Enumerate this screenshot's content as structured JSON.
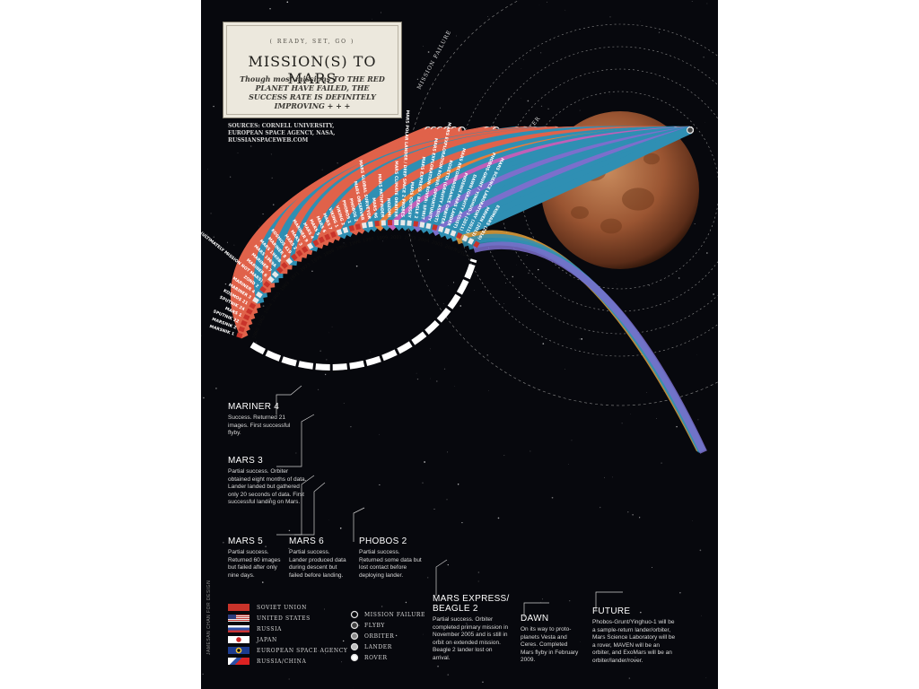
{
  "header": {
    "eyebrow": "( READY, SET, GO )",
    "title": "MISSION(S) TO MARS",
    "subtitle": "Though most missions TO THE RED PLANET HAVE FAILED, THE SUCCESS RATE IS DEFINITELY IMPROVING + + +",
    "sources": "SOURCES: CORNELL UNIVERSITY, EUROPEAN SPACE AGENCY, NASA, RUSSIANSPACEWEB.COM"
  },
  "credit": "JAMESAN CHAN FOR DESIGN",
  "ring_labels": [
    "MISSION FAILURE",
    "FLYBY",
    "ORBITER",
    "LANDER",
    "ROVER"
  ],
  "years": [
    "1960",
    "1962",
    "1964",
    "1965",
    "1969",
    "1971",
    "1973",
    "1975",
    "1988",
    "1992",
    "1996",
    "1998",
    "1999",
    "2001",
    "2003",
    "2004",
    "2005",
    "2007",
    "FUTURE"
  ],
  "colors": {
    "soviet_union": "#e0624a",
    "united_states": "#2f8fb3",
    "russia": "#e87c3a",
    "japan": "#c060b8",
    "european_space_agency": "#7b6fcc",
    "russia_china": "#e6a23c"
  },
  "missions": [
    {
      "name": "MARSNIK 1",
      "agency": "soviet_union",
      "outcome": "mission_failure"
    },
    {
      "name": "MARSNIK 2",
      "agency": "soviet_union",
      "outcome": "mission_failure"
    },
    {
      "name": "SPUTNIK 22",
      "agency": "soviet_union",
      "outcome": "mission_failure"
    },
    {
      "name": "MARS 1",
      "agency": "soviet_union",
      "outcome": "mission_failure"
    },
    {
      "name": "SPUTNIK 24",
      "agency": "soviet_union",
      "outcome": "mission_failure"
    },
    {
      "name": "KOSMOS 21",
      "agency": "soviet_union",
      "outcome": "mission_failure"
    },
    {
      "name": "MARINER 3",
      "agency": "united_states",
      "outcome": "flyby"
    },
    {
      "name": "MARINER 4",
      "agency": "united_states",
      "outcome": "flyby"
    },
    {
      "name": "ZOND 2",
      "agency": "soviet_union",
      "outcome": "mission_failure"
    },
    {
      "name": "ZOND 3 (ULTIMATELY MISSION NOT MARS)",
      "agency": "soviet_union",
      "outcome": "mission_failure"
    },
    {
      "name": "MARINER 6",
      "agency": "united_states",
      "outcome": "flyby"
    },
    {
      "name": "MARINER 7",
      "agency": "united_states",
      "outcome": "flyby"
    },
    {
      "name": "MARS 1969A",
      "agency": "soviet_union",
      "outcome": "mission_failure"
    },
    {
      "name": "MARS 1969B",
      "agency": "soviet_union",
      "outcome": "mission_failure"
    },
    {
      "name": "MARINER 8",
      "agency": "united_states",
      "outcome": "mission_failure"
    },
    {
      "name": "KOSMOS 419",
      "agency": "soviet_union",
      "outcome": "mission_failure"
    },
    {
      "name": "MARS 2",
      "agency": "soviet_union",
      "outcome": "orbiter"
    },
    {
      "name": "MARS 3",
      "agency": "soviet_union",
      "outcome": "lander"
    },
    {
      "name": "MARINER 9",
      "agency": "united_states",
      "outcome": "orbiter"
    },
    {
      "name": "MARS 4",
      "agency": "soviet_union",
      "outcome": "flyby"
    },
    {
      "name": "MARS 5",
      "agency": "soviet_union",
      "outcome": "orbiter"
    },
    {
      "name": "MARS 6",
      "agency": "soviet_union",
      "outcome": "lander"
    },
    {
      "name": "MARS 7",
      "agency": "soviet_union",
      "outcome": "flyby"
    },
    {
      "name": "VIKING 1",
      "agency": "united_states",
      "outcome": "lander"
    },
    {
      "name": "VIKING 2",
      "agency": "united_states",
      "outcome": "lander"
    },
    {
      "name": "PHOBOS 1",
      "agency": "soviet_union",
      "outcome": "mission_failure"
    },
    {
      "name": "PHOBOS 2",
      "agency": "soviet_union",
      "outcome": "orbiter"
    },
    {
      "name": "MARS OBSERVER",
      "agency": "united_states",
      "outcome": "mission_failure"
    },
    {
      "name": "MARS GLOBAL SURVEYOR",
      "agency": "united_states",
      "outcome": "orbiter"
    },
    {
      "name": "MARS 96",
      "agency": "russia",
      "outcome": "mission_failure"
    },
    {
      "name": "MARS PATHFINDER",
      "agency": "united_states",
      "outcome": "rover"
    },
    {
      "name": "NOZOMI",
      "agency": "japan",
      "outcome": "mission_failure"
    },
    {
      "name": "MARS CLIMATE ORBITER",
      "agency": "united_states",
      "outcome": "mission_failure"
    },
    {
      "name": "MARS POLAR LANDER / DEEP SPACE 2 PROBES",
      "agency": "united_states",
      "outcome": "mission_failure"
    },
    {
      "name": "MARS ODYSSEY",
      "agency": "united_states",
      "outcome": "orbiter"
    },
    {
      "name": "MARS EXPRESS / BEAGLE 2",
      "agency": "european_space_agency",
      "outcome": "orbiter"
    },
    {
      "name": "MARS EXPLORATION ROVER: SPIRIT",
      "agency": "united_states",
      "outcome": "rover"
    },
    {
      "name": "MARS EXPLORATION ROVER: OPPORTUNITY",
      "agency": "united_states",
      "outcome": "rover"
    },
    {
      "name": "ROSETTA (GRAVITY ASSIST)",
      "agency": "european_space_agency",
      "outcome": "flyby"
    },
    {
      "name": "MARS RECONNAISSANCE ORBITER",
      "agency": "united_states",
      "outcome": "orbiter"
    },
    {
      "name": "PHOENIX MARS LANDER",
      "agency": "united_states",
      "outcome": "lander"
    },
    {
      "name": "DAWN (GRAVITY ASSIST)",
      "agency": "united_states",
      "outcome": "flyby"
    },
    {
      "name": "PHOBOS-GRUNT / YINGHUO-1 (2011)",
      "agency": "russia_china",
      "outcome": "future"
    },
    {
      "name": "MARS SCIENCE LABORATORY (2011)",
      "agency": "united_states",
      "outcome": "future"
    },
    {
      "name": "MAVEN (2013)",
      "agency": "united_states",
      "outcome": "future"
    },
    {
      "name": "EXOMARS (2016)",
      "agency": "european_space_agency",
      "outcome": "future"
    }
  ],
  "annotations": [
    {
      "key": "mariner4",
      "heading": "MARINER 4",
      "body": "Success. Returned 21 images. First successful flyby."
    },
    {
      "key": "mars3",
      "heading": "MARS 3",
      "body": "Partial success. Orbiter obtained eight months of data. Lander landed but gathered only 20 seconds of data. First successful landing on Mars."
    },
    {
      "key": "mars5",
      "heading": "MARS 5",
      "body": "Partial success. Returned 60 images but failed after only nine days."
    },
    {
      "key": "mars6",
      "heading": "MARS 6",
      "body": "Partial success. Lander produced data during descent but failed before landing."
    },
    {
      "key": "phobos2",
      "heading": "PHOBOS 2",
      "body": "Partial success. Returned some data but lost contact before deploying lander."
    },
    {
      "key": "marsexpress",
      "heading": "MARS EXPRESS/ BEAGLE 2",
      "body": "Partial success. Orbiter completed primary mission in November 2005 and is still in orbit on extended mission. Beagle 2 lander lost on arrival."
    },
    {
      "key": "dawn",
      "heading": "DAWN",
      "body": "On its way to proto-planets Vesta and Ceres. Completed Mars flyby in February 2009."
    },
    {
      "key": "future",
      "heading": "FUTURE",
      "body": "Phobos-Grunt/Yinghuo-1 will be a sample-return lander/orbiter, Mars Science Laboratory will be a rover, MAVEN will be an orbiter, and ExoMars will be an orbiter/lander/rover."
    }
  ],
  "legend": {
    "agencies": [
      {
        "key": "soviet_union",
        "label": "SOVIET UNION"
      },
      {
        "key": "united_states",
        "label": "UNITED STATES"
      },
      {
        "key": "russia",
        "label": "RUSSIA"
      },
      {
        "key": "japan",
        "label": "JAPAN"
      },
      {
        "key": "european_space_agency",
        "label": "EUROPEAN SPACE AGENCY"
      },
      {
        "key": "russia_china",
        "label": "RUSSIA/CHINA"
      }
    ],
    "outcomes": [
      "MISSION FAILURE",
      "FLYBY",
      "ORBITER",
      "LANDER",
      "ROVER"
    ]
  }
}
